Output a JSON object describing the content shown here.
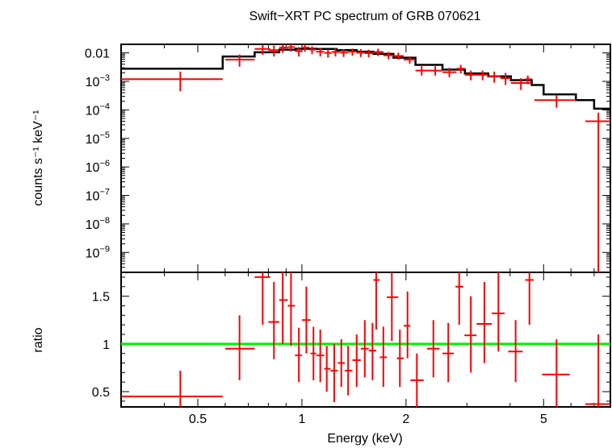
{
  "chart_data": [
    {
      "type": "scatter",
      "title": "Swift−XRT PC spectrum of GRB 070621",
      "ylabel": "counts s⁻¹ keV⁻¹",
      "xlabel": "Energy (keV)",
      "x_scale": "log",
      "y_scale": "log",
      "xlim": [
        0.3,
        7.8
      ],
      "ylim": [
        2e-10,
        0.02
      ],
      "y_ticks": [
        {
          "v": 0.01,
          "label": "0.01"
        },
        {
          "v": 0.001,
          "base": "10",
          "exp": "−3"
        },
        {
          "v": 0.0001,
          "base": "10",
          "exp": "−4"
        },
        {
          "v": 1e-05,
          "base": "10",
          "exp": "−5"
        },
        {
          "v": 1e-06,
          "base": "10",
          "exp": "−6"
        },
        {
          "v": 1e-07,
          "base": "10",
          "exp": "−7"
        },
        {
          "v": 1e-08,
          "base": "10",
          "exp": "−8"
        },
        {
          "v": 1e-09,
          "base": "10",
          "exp": "−9"
        }
      ],
      "series": [
        {
          "role": "data",
          "color": "#ff0000",
          "points": [
            {
              "x": 0.445,
              "xlo": 0.3,
              "xhi": 0.59,
              "y": 0.0012,
              "ylo": 0.00045,
              "yhi": 0.0022
            },
            {
              "x": 0.66,
              "xlo": 0.6,
              "xhi": 0.73,
              "y": 0.0058,
              "ylo": 0.0033,
              "yhi": 0.0088
            },
            {
              "x": 0.77,
              "xlo": 0.73,
              "xhi": 0.81,
              "y": 0.0137,
              "ylo": 0.0085,
              "yhi": 0.019
            },
            {
              "x": 0.83,
              "xlo": 0.8,
              "xhi": 0.86,
              "y": 0.0125,
              "ylo": 0.0075,
              "yhi": 0.018
            },
            {
              "x": 0.88,
              "xlo": 0.86,
              "xhi": 0.91,
              "y": 0.0155,
              "ylo": 0.01,
              "yhi": 0.021
            },
            {
              "x": 0.93,
              "xlo": 0.91,
              "xhi": 0.955,
              "y": 0.016,
              "ylo": 0.011,
              "yhi": 0.021
            },
            {
              "x": 0.98,
              "xlo": 0.955,
              "xhi": 1.0,
              "y": 0.0115,
              "ylo": 0.0075,
              "yhi": 0.016
            },
            {
              "x": 1.02,
              "xlo": 1.0,
              "xhi": 1.05,
              "y": 0.0155,
              "ylo": 0.011,
              "yhi": 0.02
            },
            {
              "x": 1.07,
              "xlo": 1.05,
              "xhi": 1.1,
              "y": 0.013,
              "ylo": 0.009,
              "yhi": 0.017
            },
            {
              "x": 1.13,
              "xlo": 1.1,
              "xhi": 1.16,
              "y": 0.011,
              "ylo": 0.0075,
              "yhi": 0.015
            },
            {
              "x": 1.19,
              "xlo": 1.16,
              "xhi": 1.22,
              "y": 0.01,
              "ylo": 0.0068,
              "yhi": 0.0135
            },
            {
              "x": 1.25,
              "xlo": 1.22,
              "xhi": 1.29,
              "y": 0.0108,
              "ylo": 0.0075,
              "yhi": 0.0142
            },
            {
              "x": 1.32,
              "xlo": 1.29,
              "xhi": 1.36,
              "y": 0.0102,
              "ylo": 0.0072,
              "yhi": 0.0135
            },
            {
              "x": 1.4,
              "xlo": 1.36,
              "xhi": 1.44,
              "y": 0.011,
              "ylo": 0.008,
              "yhi": 0.0142
            },
            {
              "x": 1.48,
              "xlo": 1.44,
              "xhi": 1.52,
              "y": 0.0102,
              "ylo": 0.0072,
              "yhi": 0.0135
            },
            {
              "x": 1.56,
              "xlo": 1.52,
              "xhi": 1.61,
              "y": 0.0098,
              "ylo": 0.007,
              "yhi": 0.013
            },
            {
              "x": 1.66,
              "xlo": 1.61,
              "xhi": 1.72,
              "y": 0.0108,
              "ylo": 0.0078,
              "yhi": 0.014
            },
            {
              "x": 1.78,
              "xlo": 1.72,
              "xhi": 1.84,
              "y": 0.0082,
              "ylo": 0.006,
              "yhi": 0.0108
            },
            {
              "x": 1.9,
              "xlo": 1.84,
              "xhi": 1.97,
              "y": 0.0078,
              "ylo": 0.0058,
              "yhi": 0.0102
            },
            {
              "x": 2.05,
              "xlo": 1.97,
              "xhi": 2.13,
              "y": 0.0058,
              "ylo": 0.0042,
              "yhi": 0.0076
            },
            {
              "x": 2.22,
              "xlo": 2.13,
              "xhi": 2.32,
              "y": 0.0024,
              "ylo": 0.0016,
              "yhi": 0.0034
            },
            {
              "x": 2.43,
              "xlo": 2.32,
              "xhi": 2.55,
              "y": 0.0024,
              "ylo": 0.0016,
              "yhi": 0.0034
            },
            {
              "x": 2.67,
              "xlo": 2.55,
              "xhi": 2.8,
              "y": 0.0021,
              "ylo": 0.0014,
              "yhi": 0.003
            },
            {
              "x": 2.88,
              "xlo": 2.8,
              "xhi": 2.96,
              "y": 0.0028,
              "ylo": 0.0019,
              "yhi": 0.0038
            },
            {
              "x": 3.08,
              "xlo": 2.96,
              "xhi": 3.2,
              "y": 0.0017,
              "ylo": 0.0011,
              "yhi": 0.0024
            },
            {
              "x": 3.33,
              "xlo": 3.2,
              "xhi": 3.46,
              "y": 0.0017,
              "ylo": 0.0011,
              "yhi": 0.0024
            },
            {
              "x": 3.6,
              "xlo": 3.46,
              "xhi": 3.75,
              "y": 0.0015,
              "ylo": 0.0009,
              "yhi": 0.0022
            },
            {
              "x": 3.88,
              "xlo": 3.75,
              "xhi": 4.02,
              "y": 0.0013,
              "ylo": 0.00075,
              "yhi": 0.002
            },
            {
              "x": 4.3,
              "xlo": 4.02,
              "xhi": 4.62,
              "y": 0.00088,
              "ylo": 0.0005,
              "yhi": 0.0013
            },
            {
              "x": 4.5,
              "xlo": 4.42,
              "xhi": 4.62,
              "y": 0.0012,
              "ylo": 0.0008,
              "yhi": 0.0016
            },
            {
              "x": 5.45,
              "xlo": 4.7,
              "xhi": 6.2,
              "y": 0.00022,
              "ylo": 0.00012,
              "yhi": 0.00033
            },
            {
              "x": 7.2,
              "xlo": 6.6,
              "xhi": 7.8,
              "y": 4e-05,
              "ylo": 2e-10,
              "yhi": 8e-05
            }
          ]
        },
        {
          "role": "model",
          "color": "#000000",
          "steps": [
            {
              "x0": 0.3,
              "x1": 0.59,
              "y": 0.0028
            },
            {
              "x0": 0.59,
              "x1": 0.73,
              "y": 0.0075
            },
            {
              "x0": 0.73,
              "x1": 0.86,
              "y": 0.0105
            },
            {
              "x0": 0.86,
              "x1": 0.96,
              "y": 0.013
            },
            {
              "x0": 0.96,
              "x1": 1.1,
              "y": 0.014
            },
            {
              "x0": 1.1,
              "x1": 1.26,
              "y": 0.0138
            },
            {
              "x0": 1.26,
              "x1": 1.44,
              "y": 0.0125
            },
            {
              "x0": 1.44,
              "x1": 1.61,
              "y": 0.011
            },
            {
              "x0": 1.61,
              "x1": 1.84,
              "y": 0.0092
            },
            {
              "x0": 1.84,
              "x1": 2.13,
              "y": 0.0068
            },
            {
              "x0": 2.13,
              "x1": 2.55,
              "y": 0.0038
            },
            {
              "x0": 2.55,
              "x1": 2.96,
              "y": 0.0026
            },
            {
              "x0": 2.96,
              "x1": 3.46,
              "y": 0.0019
            },
            {
              "x0": 3.46,
              "x1": 4.02,
              "y": 0.0015
            },
            {
              "x0": 4.02,
              "x1": 4.62,
              "y": 0.0011
            },
            {
              "x0": 4.62,
              "x1": 5.0,
              "y": 0.00075
            },
            {
              "x0": 5.0,
              "x1": 6.2,
              "y": 0.00035
            },
            {
              "x0": 6.2,
              "x1": 7.0,
              "y": 0.00022
            },
            {
              "x0": 7.0,
              "x1": 7.8,
              "y": 0.00011
            }
          ]
        }
      ]
    },
    {
      "type": "scatter",
      "ylabel": "ratio",
      "xlabel": "Energy (keV)",
      "x_scale": "log",
      "xlim": [
        0.3,
        7.8
      ],
      "ylim": [
        0.34,
        1.75
      ],
      "x_ticks": [
        {
          "v": 0.5,
          "label": "0.5"
        },
        {
          "v": 1,
          "label": "1"
        },
        {
          "v": 2,
          "label": "2"
        },
        {
          "v": 5,
          "label": "5"
        }
      ],
      "y_ticks": [
        {
          "v": 0.5,
          "label": "0.5"
        },
        {
          "v": 1,
          "label": "1"
        },
        {
          "v": 1.5,
          "label": "1.5"
        }
      ],
      "reference_line": {
        "y": 1,
        "color": "#00ee00"
      },
      "series": [
        {
          "role": "ratio",
          "color": "#ff0000",
          "points": [
            {
              "x": 0.445,
              "xlo": 0.3,
              "xhi": 0.59,
              "y": 0.45,
              "ylo": 0.18,
              "yhi": 0.72
            },
            {
              "x": 0.66,
              "xlo": 0.6,
              "xhi": 0.73,
              "y": 0.95,
              "ylo": 0.62,
              "yhi": 1.3
            },
            {
              "x": 0.77,
              "xlo": 0.73,
              "xhi": 0.81,
              "y": 1.7,
              "ylo": 1.2,
              "yhi": 2.0
            },
            {
              "x": 0.83,
              "xlo": 0.8,
              "xhi": 0.86,
              "y": 1.23,
              "ylo": 0.84,
              "yhi": 1.65
            },
            {
              "x": 0.88,
              "xlo": 0.86,
              "xhi": 0.91,
              "y": 1.46,
              "ylo": 1.0,
              "yhi": 1.9
            },
            {
              "x": 0.93,
              "xlo": 0.91,
              "xhi": 0.955,
              "y": 1.4,
              "ylo": 0.98,
              "yhi": 1.8
            },
            {
              "x": 0.98,
              "xlo": 0.955,
              "xhi": 1.0,
              "y": 0.88,
              "ylo": 0.6,
              "yhi": 1.17
            },
            {
              "x": 1.03,
              "xlo": 1.0,
              "xhi": 1.06,
              "y": 1.25,
              "ylo": 0.9,
              "yhi": 1.6
            },
            {
              "x": 1.08,
              "xlo": 1.06,
              "xhi": 1.1,
              "y": 0.9,
              "ylo": 0.62,
              "yhi": 1.18
            },
            {
              "x": 1.13,
              "xlo": 1.1,
              "xhi": 1.16,
              "y": 0.88,
              "ylo": 0.6,
              "yhi": 1.15
            },
            {
              "x": 1.18,
              "xlo": 1.16,
              "xhi": 1.21,
              "y": 0.74,
              "ylo": 0.5,
              "yhi": 0.98
            },
            {
              "x": 1.24,
              "xlo": 1.21,
              "xhi": 1.27,
              "y": 0.72,
              "ylo": 0.39,
              "yhi": 1.0
            },
            {
              "x": 1.3,
              "xlo": 1.27,
              "xhi": 1.33,
              "y": 0.8,
              "ylo": 0.55,
              "yhi": 1.05
            },
            {
              "x": 1.36,
              "xlo": 1.33,
              "xhi": 1.4,
              "y": 0.72,
              "ylo": 0.46,
              "yhi": 0.98
            },
            {
              "x": 1.44,
              "xlo": 1.4,
              "xhi": 1.48,
              "y": 0.83,
              "ylo": 0.55,
              "yhi": 1.1
            },
            {
              "x": 1.52,
              "xlo": 1.48,
              "xhi": 1.56,
              "y": 0.95,
              "ylo": 0.65,
              "yhi": 1.25
            },
            {
              "x": 1.6,
              "xlo": 1.56,
              "xhi": 1.64,
              "y": 0.93,
              "ylo": 0.62,
              "yhi": 1.22
            },
            {
              "x": 1.64,
              "xlo": 1.61,
              "xhi": 1.68,
              "y": 1.67,
              "ylo": 1.15,
              "yhi": 2.0
            },
            {
              "x": 1.72,
              "xlo": 1.68,
              "xhi": 1.76,
              "y": 0.86,
              "ylo": 0.55,
              "yhi": 1.18
            },
            {
              "x": 1.82,
              "xlo": 1.76,
              "xhi": 1.9,
              "y": 1.49,
              "ylo": 1.03,
              "yhi": 1.95
            },
            {
              "x": 1.92,
              "xlo": 1.88,
              "xhi": 1.97,
              "y": 0.85,
              "ylo": 0.55,
              "yhi": 1.15
            },
            {
              "x": 2.02,
              "xlo": 1.97,
              "xhi": 2.06,
              "y": 1.19,
              "ylo": 0.85,
              "yhi": 1.55
            },
            {
              "x": 2.15,
              "xlo": 2.06,
              "xhi": 2.25,
              "y": 0.62,
              "ylo": 0.33,
              "yhi": 0.9
            },
            {
              "x": 2.4,
              "xlo": 2.3,
              "xhi": 2.5,
              "y": 0.95,
              "ylo": 0.65,
              "yhi": 1.25
            },
            {
              "x": 2.65,
              "xlo": 2.55,
              "xhi": 2.75,
              "y": 0.9,
              "ylo": 0.6,
              "yhi": 1.22
            },
            {
              "x": 2.85,
              "xlo": 2.78,
              "xhi": 2.93,
              "y": 1.6,
              "ylo": 1.2,
              "yhi": 1.95
            },
            {
              "x": 3.08,
              "xlo": 2.95,
              "xhi": 3.2,
              "y": 1.09,
              "ylo": 0.7,
              "yhi": 1.5
            },
            {
              "x": 3.37,
              "xlo": 3.2,
              "xhi": 3.54,
              "y": 1.21,
              "ylo": 0.8,
              "yhi": 1.65
            },
            {
              "x": 3.7,
              "xlo": 3.54,
              "xhi": 3.86,
              "y": 1.32,
              "ylo": 0.92,
              "yhi": 1.75
            },
            {
              "x": 4.15,
              "xlo": 3.95,
              "xhi": 4.35,
              "y": 0.92,
              "ylo": 0.6,
              "yhi": 1.25
            },
            {
              "x": 4.55,
              "xlo": 4.42,
              "xhi": 4.68,
              "y": 1.67,
              "ylo": 1.2,
              "yhi": 2.0
            },
            {
              "x": 5.45,
              "xlo": 4.95,
              "xhi": 5.95,
              "y": 0.68,
              "ylo": 0.3,
              "yhi": 1.05
            },
            {
              "x": 7.2,
              "xlo": 6.6,
              "xhi": 7.8,
              "y": 0.37,
              "ylo": 0.1,
              "yhi": 1.1
            }
          ]
        }
      ]
    }
  ]
}
